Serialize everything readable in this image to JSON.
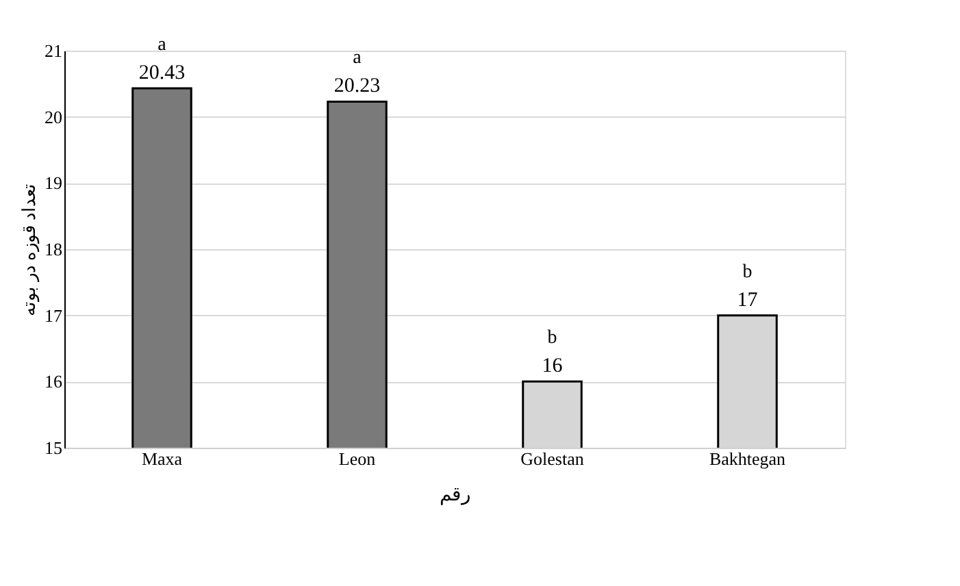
{
  "chart_data": {
    "type": "bar",
    "xlabel": "رقم",
    "ylabel": "تعداد قوزه در بوته",
    "categories": [
      "Maxa",
      "Leon",
      "Golestan",
      "Bakhtegan"
    ],
    "values": [
      20.43,
      20.23,
      16,
      17
    ],
    "colors": [
      "#7a7a7a",
      "#7a7a7a",
      "#d6d6d6",
      "#d6d6d6"
    ],
    "ylim": [
      15,
      21
    ],
    "yticks": [
      15,
      16,
      17,
      18,
      19,
      20,
      21
    ],
    "grid": "y",
    "data_labels": true,
    "annotations": [
      {
        "text": "a",
        "x": "Maxa",
        "y": 20.43
      },
      {
        "text": "a",
        "x": "Leon",
        "y": 20.23
      },
      {
        "text": "b",
        "x": "Golestan",
        "y": 16
      },
      {
        "text": "b",
        "x": "Bakhtegan",
        "y": 17
      }
    ]
  }
}
